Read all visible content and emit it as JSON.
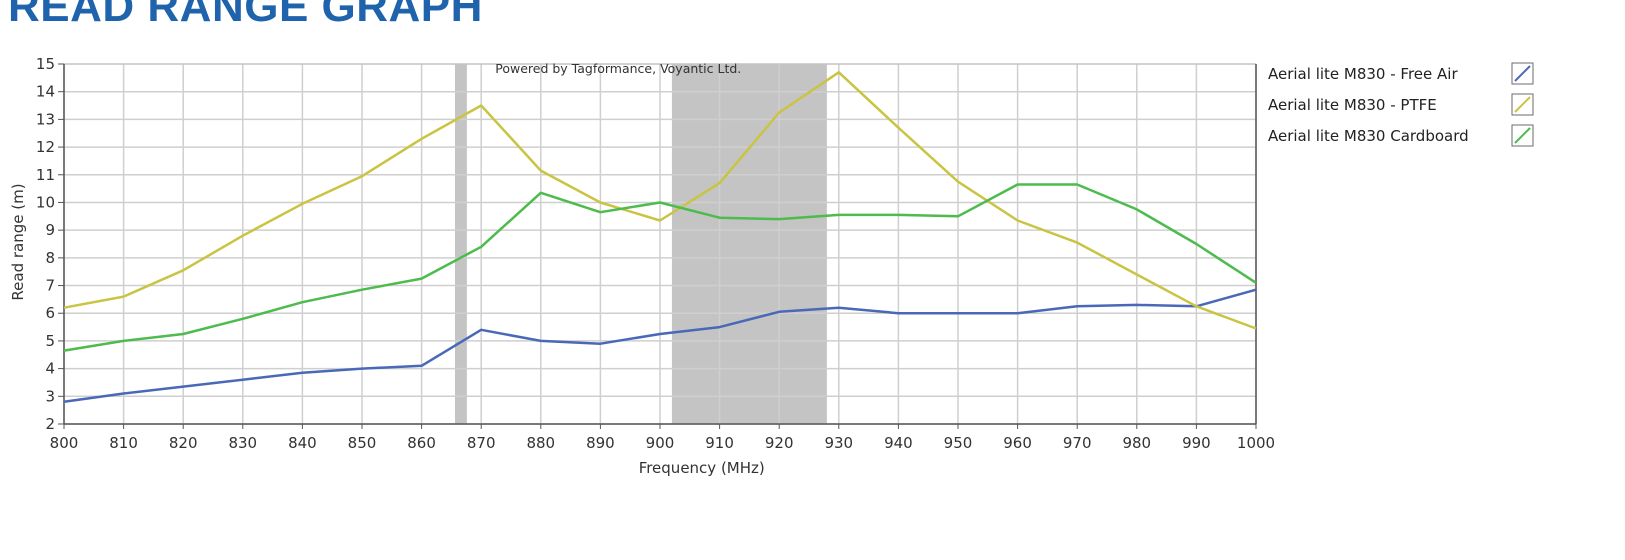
{
  "heading": "READ RANGE GRAPH",
  "chart_data": {
    "type": "line",
    "title": "",
    "watermark": "Powered by Tagformance, Voyantic Ltd.",
    "xlabel": "Frequency (MHz)",
    "ylabel": "Read range (m)",
    "xlim": [
      800,
      1000
    ],
    "ylim": [
      2,
      15
    ],
    "xticks": [
      800,
      810,
      820,
      830,
      840,
      850,
      860,
      870,
      880,
      890,
      900,
      910,
      920,
      930,
      940,
      950,
      960,
      970,
      980,
      990,
      1000
    ],
    "yticks": [
      2,
      3,
      4,
      5,
      6,
      7,
      8,
      9,
      10,
      11,
      12,
      13,
      14,
      15
    ],
    "grid": true,
    "legend_position": "right",
    "shaded_bands": [
      {
        "from": 865.6,
        "to": 867.6
      },
      {
        "from": 902,
        "to": 928
      }
    ],
    "x": [
      800,
      810,
      820,
      830,
      840,
      850,
      860,
      870,
      880,
      890,
      900,
      910,
      920,
      930,
      940,
      950,
      960,
      970,
      980,
      990,
      1000
    ],
    "series": [
      {
        "name": "Aerial lite M830 - Free Air",
        "color": "#4a68b8",
        "values": [
          2.8,
          3.1,
          3.35,
          3.6,
          3.85,
          4.0,
          4.1,
          5.4,
          5.0,
          4.9,
          5.25,
          5.5,
          6.05,
          6.2,
          6.0,
          6.0,
          6.0,
          6.25,
          6.3,
          6.25,
          6.85
        ]
      },
      {
        "name": "Aerial lite M830 - PTFE",
        "color": "#c9c442",
        "values": [
          6.2,
          6.6,
          7.55,
          8.8,
          9.95,
          10.95,
          12.3,
          13.5,
          11.15,
          10.0,
          9.35,
          10.7,
          13.25,
          14.7,
          12.7,
          10.75,
          9.35,
          8.55,
          7.4,
          6.25,
          5.45
        ]
      },
      {
        "name": "Aerial lite M830 Cardboard",
        "color": "#4dbb4d",
        "values": [
          4.65,
          5.0,
          5.25,
          5.8,
          6.4,
          6.85,
          7.25,
          8.4,
          10.35,
          9.65,
          10.0,
          9.45,
          9.4,
          9.55,
          9.55,
          9.5,
          10.65,
          10.65,
          9.75,
          8.5,
          7.1
        ]
      }
    ]
  }
}
